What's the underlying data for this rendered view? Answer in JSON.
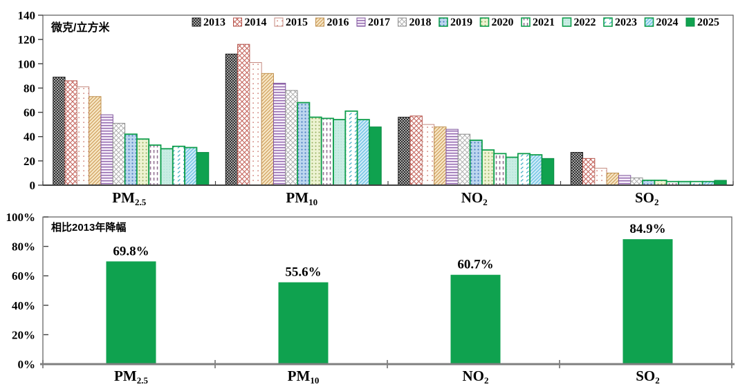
{
  "page": {
    "background": "#ffffff",
    "accent_green": "#0fa24f"
  },
  "chart_data": [
    {
      "id": "pollutant-concentration-chart",
      "type": "bar",
      "unit_label": "微克/立方米",
      "legend_position": "top-inside",
      "grid": false,
      "ylim": [
        0,
        140
      ],
      "ytick_step": 20,
      "ytick_labels": [
        "0",
        "20",
        "40",
        "60",
        "80",
        "100",
        "120",
        "140"
      ],
      "categories": [
        {
          "text": "PM2.5",
          "main": "PM",
          "sub": "2.5"
        },
        {
          "text": "PM10",
          "main": "PM",
          "sub": "10"
        },
        {
          "text": "NO2",
          "main": "NO",
          "sub": "2"
        },
        {
          "text": "SO2",
          "main": "SO",
          "sub": "2"
        }
      ],
      "series": [
        {
          "name": "2013",
          "values": [
            89,
            108,
            56,
            27
          ],
          "pattern": "checker",
          "fg": "#2f2f2f",
          "bg": "#a8a8a8",
          "border": "#1a1a1a",
          "tile": 4
        },
        {
          "name": "2014",
          "values": [
            86,
            116,
            57,
            22
          ],
          "pattern": "diagcross",
          "fg": "#c4645c",
          "bg": "#ffffff",
          "border": "#b4544c",
          "tile": 7,
          "lw": 1.1
        },
        {
          "name": "2015",
          "values": [
            81,
            101,
            50,
            14
          ],
          "pattern": "dots",
          "fg": "#cc7a72",
          "bg": "#fffefc",
          "border": "#c48a80",
          "tile": 7,
          "r": 0.9
        },
        {
          "name": "2016",
          "values": [
            73,
            92,
            48,
            10
          ],
          "pattern": "diag",
          "fg": "#cfa05e",
          "bg": "#f7e7c6",
          "border": "#bf9050",
          "tile": 5,
          "lw": 1.2
        },
        {
          "name": "2017",
          "values": [
            58,
            84,
            46,
            8
          ],
          "pattern": "hlines",
          "fg": "#8f63ab",
          "bg": "#f6eef9",
          "border": "#7d539b",
          "tile": 4,
          "lw": 1.4
        },
        {
          "name": "2018",
          "values": [
            51,
            78,
            42,
            6
          ],
          "pattern": "diagcross",
          "fg": "#a6a6a6",
          "bg": "#ffffff",
          "border": "#8f8f8f",
          "tile": 7,
          "lw": 0.9
        },
        {
          "name": "2019",
          "values": [
            42,
            68,
            37,
            4
          ],
          "pattern": "dots",
          "fg": "#4f7fc1",
          "bg": "#bdd7ef",
          "border": "#0f9e4c",
          "tile": 5,
          "r": 1.1
        },
        {
          "name": "2020",
          "values": [
            38,
            56,
            29,
            4
          ],
          "pattern": "dots",
          "fg": "#93ad5c",
          "bg": "#edf3d2",
          "border": "#0f9e4c",
          "tile": 5,
          "r": 1.0
        },
        {
          "name": "2021",
          "values": [
            33,
            55,
            26,
            3
          ],
          "pattern": "vdash",
          "fg": "#8f7090",
          "bg": "#ffffff",
          "border": "#0f9e4c",
          "tile": 5,
          "tile2": 8
        },
        {
          "name": "2022",
          "values": [
            30,
            54,
            23,
            3
          ],
          "pattern": "dots",
          "fg": "#a8ded2",
          "bg": "#c9ede4",
          "border": "#0f9e4c",
          "tile": 4,
          "r": 0.7
        },
        {
          "name": "2023",
          "values": [
            32,
            61,
            26,
            3
          ],
          "pattern": "diagdash",
          "fg": "#49b2c6",
          "bg": "#ffffff",
          "border": "#0f9e4c",
          "tile": 8,
          "tile2": 6
        },
        {
          "name": "2024",
          "values": [
            31,
            54,
            25,
            3
          ],
          "pattern": "diag",
          "fg": "#6fc3e5",
          "bg": "#d2ebf7",
          "border": "#0f9e4c",
          "tile": 5,
          "lw": 1.4
        },
        {
          "name": "2025",
          "values": [
            27,
            48,
            22,
            4
          ],
          "pattern": "solid",
          "fg": "#0fa24f",
          "bg": "#0fa24f",
          "border": "#0c8c44"
        }
      ]
    },
    {
      "id": "decline-vs-2013-chart",
      "type": "bar",
      "title": "相比2013年降幅",
      "grid": false,
      "ylim": [
        0,
        100
      ],
      "ytick_step": 20,
      "ytick_labels": [
        "0%",
        "20%",
        "40%",
        "60%",
        "80%",
        "100%"
      ],
      "categories": [
        {
          "text": "PM2.5",
          "main": "PM",
          "sub": "2.5"
        },
        {
          "text": "PM10",
          "main": "PM",
          "sub": "10"
        },
        {
          "text": "NO2",
          "main": "NO",
          "sub": "2"
        },
        {
          "text": "SO2",
          "main": "SO",
          "sub": "2"
        }
      ],
      "values": [
        69.8,
        55.6,
        60.7,
        84.9
      ],
      "value_labels": [
        "69.8%",
        "55.6%",
        "60.7%",
        "84.9%"
      ],
      "bar_color": "#0fa24f"
    }
  ]
}
